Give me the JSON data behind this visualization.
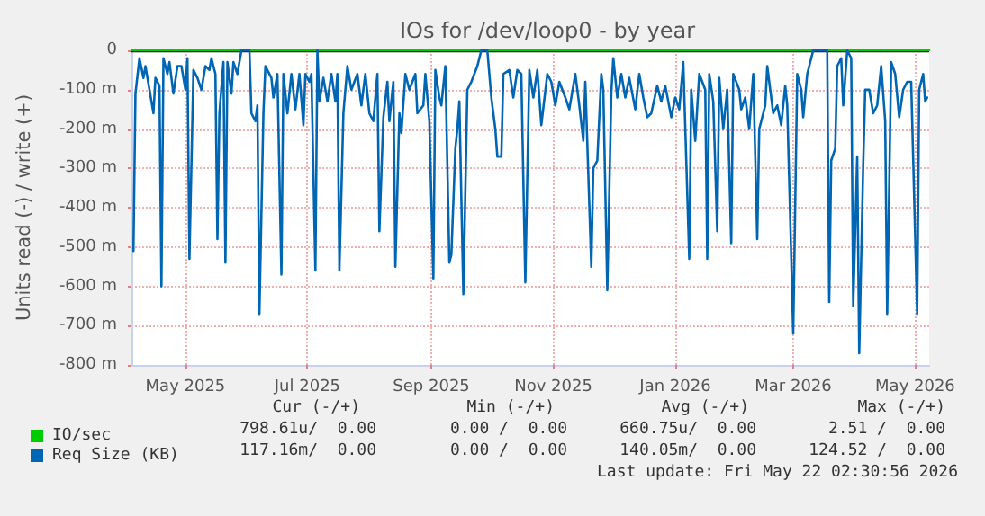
{
  "chart_data": {
    "type": "line",
    "title": "IOs for /dev/loop0 - by year",
    "ylabel": "Units read (-) / write (+)",
    "xlim": [
      "2025-04-18",
      "2026-05-22"
    ],
    "xticks": [
      {
        "value": "2025-05-15",
        "label": "May 2025"
      },
      {
        "value": "2025-07-15",
        "label": "Jul 2025"
      },
      {
        "value": "2025-09-15",
        "label": "Sep 2025"
      },
      {
        "value": "2025-11-15",
        "label": "Nov 2025"
      },
      {
        "value": "2026-01-15",
        "label": "Jan 2026"
      },
      {
        "value": "2026-03-15",
        "label": "Mar 2026"
      },
      {
        "value": "2026-05-15",
        "label": "May 2026"
      }
    ],
    "ylim": [
      -800,
      0
    ],
    "yticks": [
      {
        "value": -800,
        "label": "-800 m"
      },
      {
        "value": -700,
        "label": "-700 m"
      },
      {
        "value": -600,
        "label": "-600 m"
      },
      {
        "value": -500,
        "label": "-500 m"
      },
      {
        "value": -400,
        "label": "-400 m"
      },
      {
        "value": -300,
        "label": "-300 m"
      },
      {
        "value": -200,
        "label": "-200 m"
      },
      {
        "value": -100,
        "label": "-100 m"
      },
      0
    ],
    "grid": true,
    "legend": "bottom left",
    "marker": "none",
    "line_style": "solid",
    "ref_lines": [
      {
        "axis": "y",
        "value": 0,
        "color": "#000000"
      }
    ],
    "annotations": [
      "Cur (-/+)",
      "Min (-/+)",
      "Avg (-/+)",
      "Max (-/+)",
      "798.61u/  0.00",
      "0.00 /  0.00",
      "660.75u/  0.00",
      "2.51 /  0.00",
      "117.16m/  0.00",
      "0.00 /  0.00",
      "140.05m/  0.00",
      "124.52 /  0.00",
      "Last update: Fri May 22 02:30:56 2026"
    ],
    "series": [
      {
        "name": "IO/sec",
        "color": "#00cc00",
        "x": [
          "2025-04-18",
          "2026-05-22"
        ],
        "values": [
          0,
          0
        ]
      },
      {
        "name": "Req Size (KB)",
        "color": "#0066b3",
        "x": [
          "2025-04-19",
          "2025-04-20",
          "2025-04-22",
          "2025-04-24",
          "2025-04-25",
          "2025-04-27",
          "2025-04-28",
          "2025-04-29",
          "2025-04-30",
          "2025-05-02",
          "2025-05-03",
          "2025-05-04",
          "2025-05-06",
          "2025-05-07",
          "2025-05-09",
          "2025-05-11",
          "2025-05-13",
          "2025-05-15",
          "2025-05-16",
          "2025-05-17",
          "2025-05-19",
          "2025-05-21",
          "2025-05-23",
          "2025-05-25",
          "2025-05-27",
          "2025-05-28",
          "2025-05-30",
          "2025-05-31",
          "2025-06-01",
          "2025-06-03",
          "2025-06-04",
          "2025-06-05",
          "2025-06-07",
          "2025-06-08",
          "2025-06-10",
          "2025-06-12",
          "2025-06-16",
          "2025-06-17",
          "2025-06-19",
          "2025-06-20",
          "2025-06-21",
          "2025-06-23",
          "2025-06-24",
          "2025-06-27",
          "2025-06-28",
          "2025-06-30",
          "2025-07-02",
          "2025-07-03",
          "2025-07-05",
          "2025-07-07",
          "2025-07-09",
          "2025-07-11",
          "2025-07-13",
          "2025-07-14",
          "2025-07-16",
          "2025-07-17",
          "2025-07-19",
          "2025-07-20",
          "2025-07-21",
          "2025-07-23",
          "2025-07-25",
          "2025-07-27",
          "2025-07-29",
          "2025-07-30",
          "2025-07-31",
          "2025-08-02",
          "2025-08-04",
          "2025-08-06",
          "2025-08-09",
          "2025-08-11",
          "2025-08-13",
          "2025-08-15",
          "2025-08-17",
          "2025-08-19",
          "2025-08-20",
          "2025-08-22",
          "2025-08-24",
          "2025-08-25",
          "2025-08-27",
          "2025-08-28",
          "2025-08-30",
          "2025-08-31",
          "2025-09-02",
          "2025-09-04",
          "2025-09-07",
          "2025-09-08",
          "2025-09-11",
          "2025-09-12",
          "2025-09-14",
          "2025-09-16",
          "2025-09-17",
          "2025-09-19",
          "2025-09-20",
          "2025-09-22",
          "2025-09-24",
          "2025-09-25",
          "2025-09-27",
          "2025-09-28",
          "2025-09-29",
          "2025-10-01",
          "2025-10-03",
          "2025-10-05",
          "2025-10-08",
          "2025-10-10",
          "2025-10-13",
          "2025-10-15",
          "2025-10-17",
          "2025-10-18",
          "2025-10-20",
          "2025-10-21",
          "2025-10-24",
          "2025-10-26",
          "2025-10-28",
          "2025-10-30",
          "2025-11-01",
          "2025-11-03",
          "2025-11-05",
          "2025-11-07",
          "2025-11-09",
          "2025-11-12",
          "2025-11-14",
          "2025-11-16",
          "2025-11-18",
          "2025-11-21",
          "2025-11-23",
          "2025-11-26",
          "2025-11-28",
          "2025-11-30",
          "2025-12-01",
          "2025-12-04",
          "2025-12-05",
          "2025-12-07",
          "2025-12-09",
          "2025-12-10",
          "2025-12-12",
          "2025-12-14",
          "2025-12-15",
          "2025-12-17",
          "2025-12-19",
          "2025-12-21",
          "2025-12-23",
          "2025-12-26",
          "2025-12-28",
          "2025-12-30",
          "2026-01-01",
          "2026-01-03",
          "2026-01-06",
          "2026-01-08",
          "2026-01-10",
          "2026-01-13",
          "2026-01-15",
          "2026-01-17",
          "2026-01-19",
          "2026-01-22",
          "2026-01-23",
          "2026-01-25",
          "2026-01-27",
          "2026-01-30",
          "2026-01-31",
          "2026-02-01",
          "2026-02-03",
          "2026-02-05",
          "2026-02-06",
          "2026-02-08",
          "2026-02-10",
          "2026-02-12",
          "2026-02-13",
          "2026-02-16",
          "2026-02-17",
          "2026-02-19",
          "2026-02-21",
          "2026-02-23",
          "2026-02-25",
          "2026-02-26",
          "2026-03-01",
          "2026-03-02",
          "2026-03-05",
          "2026-03-07",
          "2026-03-09",
          "2026-03-11",
          "2026-03-12",
          "2026-03-15",
          "2026-03-17",
          "2026-03-19",
          "2026-03-20",
          "2026-03-22",
          "2026-03-25",
          "2026-03-28",
          "2026-04-01",
          "2026-04-02",
          "2026-04-03",
          "2026-04-05",
          "2026-04-06",
          "2026-04-08",
          "2026-04-09",
          "2026-04-11",
          "2026-04-13",
          "2026-04-14",
          "2026-04-16",
          "2026-04-17",
          "2026-04-19",
          "2026-04-20",
          "2026-04-22",
          "2026-04-24",
          "2026-04-26",
          "2026-04-28",
          "2026-04-30",
          "2026-05-01",
          "2026-05-03",
          "2026-05-05",
          "2026-05-07",
          "2026-05-09",
          "2026-05-11",
          "2026-05-13",
          "2026-05-16",
          "2026-05-17",
          "2026-05-19",
          "2026-05-20",
          "2026-05-21"
        ],
        "values": [
          -510,
          -110,
          -20,
          -70,
          -40,
          -100,
          -130,
          -160,
          -70,
          -90,
          -600,
          -20,
          -60,
          -30,
          -110,
          -40,
          -40,
          -100,
          -20,
          -530,
          -50,
          -70,
          -100,
          -40,
          -50,
          -20,
          -60,
          -480,
          -160,
          -30,
          -540,
          -30,
          -110,
          -30,
          -60,
          0,
          0,
          -160,
          -180,
          -140,
          -670,
          -160,
          -40,
          -70,
          -120,
          -60,
          -570,
          -60,
          -160,
          -60,
          -150,
          -60,
          -190,
          -60,
          -80,
          -60,
          -560,
          0,
          -130,
          -70,
          -130,
          -60,
          -130,
          -60,
          -560,
          -160,
          -40,
          -100,
          -60,
          -140,
          -60,
          -160,
          -180,
          -60,
          -460,
          -170,
          -80,
          -180,
          -80,
          -550,
          -160,
          -210,
          -60,
          -100,
          -60,
          -160,
          -140,
          -60,
          -180,
          -580,
          -50,
          -120,
          -140,
          -40,
          -540,
          -520,
          -250,
          -200,
          -130,
          -620,
          -100,
          -80,
          -40,
          0,
          0,
          -120,
          -200,
          -270,
          -270,
          -60,
          -50,
          -120,
          -50,
          -60,
          -590,
          -50,
          -120,
          -50,
          -190,
          -60,
          -80,
          -140,
          -80,
          -120,
          -150,
          -60,
          -140,
          -230,
          -80,
          -550,
          -300,
          -280,
          -60,
          -100,
          -610,
          -110,
          -20,
          -120,
          -60,
          -120,
          -70,
          -150,
          -60,
          -120,
          -170,
          -160,
          -90,
          -130,
          -90,
          -170,
          -120,
          -150,
          -30,
          -530,
          -100,
          -230,
          -60,
          -100,
          -530,
          -60,
          -130,
          -460,
          -70,
          -200,
          -100,
          -490,
          -60,
          -100,
          -150,
          -120,
          -200,
          -60,
          -480,
          -200,
          -140,
          -40,
          -160,
          -140,
          -190,
          -90,
          -140,
          -720,
          -60,
          -100,
          -170,
          -60,
          0,
          0,
          0,
          -640,
          -280,
          -250,
          -40,
          -20,
          -140,
          0,
          -20,
          -650,
          -270,
          -770,
          -290,
          -100,
          -100,
          -160,
          -140,
          -40,
          -180,
          -670,
          -30,
          -60,
          -170,
          -100,
          -80,
          -80,
          -670,
          -100,
          -60,
          -130,
          -120
        ]
      }
    ]
  }
}
